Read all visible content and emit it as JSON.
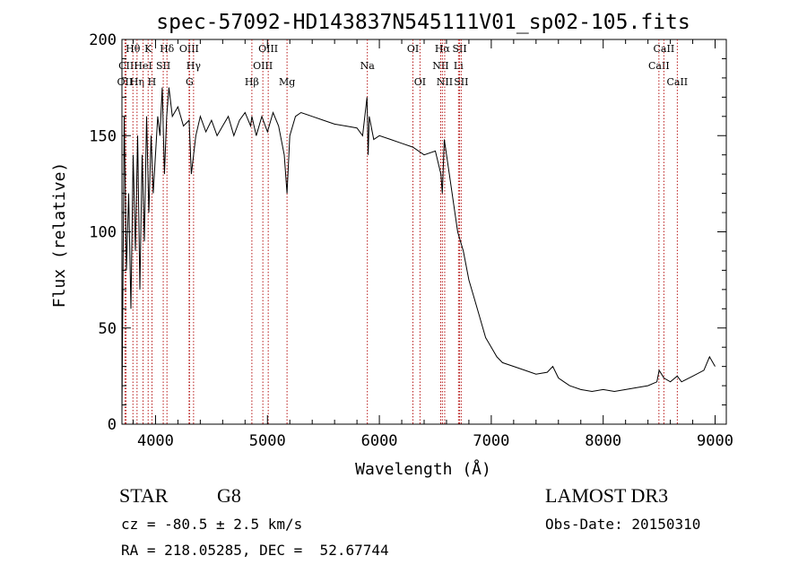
{
  "chart_data": {
    "type": "line",
    "title": "spec-57092-HD143837N545111V01_sp02-105.fits",
    "xlabel": "Wavelength (Å)",
    "ylabel": "Flux (relative)",
    "xlim": [
      3700,
      9100
    ],
    "ylim": [
      0,
      200
    ],
    "x_ticks": [
      4000,
      5000,
      6000,
      7000,
      8000,
      9000
    ],
    "y_ticks": [
      0,
      50,
      100,
      150,
      200
    ],
    "grid": false,
    "series": [
      {
        "name": "spectrum",
        "x": [
          3700,
          3720,
          3740,
          3760,
          3780,
          3800,
          3820,
          3840,
          3860,
          3880,
          3900,
          3920,
          3940,
          3960,
          3980,
          4000,
          4020,
          4040,
          4060,
          4080,
          4100,
          4120,
          4150,
          4200,
          4250,
          4300,
          4320,
          4340,
          4360,
          4400,
          4450,
          4500,
          4550,
          4600,
          4650,
          4700,
          4750,
          4800,
          4850,
          4861,
          4900,
          4950,
          5000,
          5050,
          5100,
          5150,
          5175,
          5200,
          5250,
          5300,
          5400,
          5500,
          5600,
          5700,
          5800,
          5850,
          5890,
          5900,
          5910,
          5950,
          6000,
          6100,
          6200,
          6300,
          6400,
          6500,
          6550,
          6563,
          6580,
          6600,
          6650,
          6700,
          6750,
          6800,
          6850,
          6900,
          6950,
          7000,
          7050,
          7100,
          7200,
          7300,
          7400,
          7500,
          7550,
          7600,
          7650,
          7700,
          7800,
          7900,
          8000,
          8100,
          8200,
          8300,
          8400,
          8480,
          8500,
          8542,
          8600,
          8662,
          8700,
          8800,
          8900,
          8950,
          9000
        ],
        "y": [
          5,
          160,
          80,
          120,
          60,
          140,
          90,
          150,
          70,
          140,
          95,
          160,
          110,
          150,
          120,
          140,
          160,
          150,
          175,
          130,
          160,
          175,
          160,
          165,
          155,
          158,
          130,
          140,
          150,
          160,
          152,
          158,
          150,
          155,
          160,
          150,
          158,
          162,
          155,
          160,
          150,
          160,
          152,
          162,
          155,
          140,
          120,
          150,
          160,
          162,
          160,
          158,
          156,
          155,
          154,
          150,
          170,
          140,
          160,
          148,
          150,
          148,
          146,
          144,
          140,
          142,
          130,
          120,
          148,
          140,
          120,
          100,
          90,
          75,
          65,
          55,
          45,
          40,
          35,
          32,
          30,
          28,
          26,
          27,
          30,
          24,
          22,
          20,
          18,
          17,
          18,
          17,
          18,
          19,
          20,
          22,
          28,
          24,
          22,
          25,
          22,
          25,
          28,
          35,
          30
        ]
      }
    ],
    "line_markers": [
      {
        "label": "OII",
        "x": 3727,
        "row": 1
      },
      {
        "label": "CII",
        "x": 3737,
        "row": 0
      },
      {
        "label": "Hθ",
        "x": 3798,
        "row": -1
      },
      {
        "label": "Hη",
        "x": 3835,
        "row": 1
      },
      {
        "label": "HeI",
        "x": 3889,
        "row": 0
      },
      {
        "label": "K",
        "x": 3934,
        "row": -1
      },
      {
        "label": "H",
        "x": 3968,
        "row": 1
      },
      {
        "label": "SII",
        "x": 4069,
        "row": 0
      },
      {
        "label": "Hδ",
        "x": 4102,
        "row": -1
      },
      {
        "label": "OIII",
        "x": 4300,
        "row": -1
      },
      {
        "label": "G",
        "x": 4304,
        "row": 1
      },
      {
        "label": "Hγ",
        "x": 4340,
        "row": 0
      },
      {
        "label": "Hβ",
        "x": 4861,
        "row": 1
      },
      {
        "label": "OIII",
        "x": 4959,
        "row": 0
      },
      {
        "label": "OIII",
        "x": 5007,
        "row": -1
      },
      {
        "label": "Mg",
        "x": 5175,
        "row": 1
      },
      {
        "label": "Na",
        "x": 5893,
        "row": 0
      },
      {
        "label": "OI",
        "x": 6300,
        "row": -1
      },
      {
        "label": "OI",
        "x": 6363,
        "row": 1
      },
      {
        "label": "NII",
        "x": 6548,
        "row": 0
      },
      {
        "label": "Hα",
        "x": 6563,
        "row": -1
      },
      {
        "label": "NII",
        "x": 6584,
        "row": 1
      },
      {
        "label": "Li",
        "x": 6707,
        "row": 0
      },
      {
        "label": "SII",
        "x": 6717,
        "row": -1
      },
      {
        "label": "SII",
        "x": 6731,
        "row": 1
      },
      {
        "label": "CaII",
        "x": 8498,
        "row": 0
      },
      {
        "label": "CaII",
        "x": 8542,
        "row": -1
      },
      {
        "label": "CaII",
        "x": 8662,
        "row": 1
      }
    ]
  },
  "info": {
    "class": "STAR",
    "subclass": "G8",
    "cz": "cz = -80.5 ± 2.5 km/s",
    "radec": "RA = 218.05285, DEC =  52.67744",
    "survey": "LAMOST DR3",
    "obsdate": "Obs-Date: 20150310"
  }
}
